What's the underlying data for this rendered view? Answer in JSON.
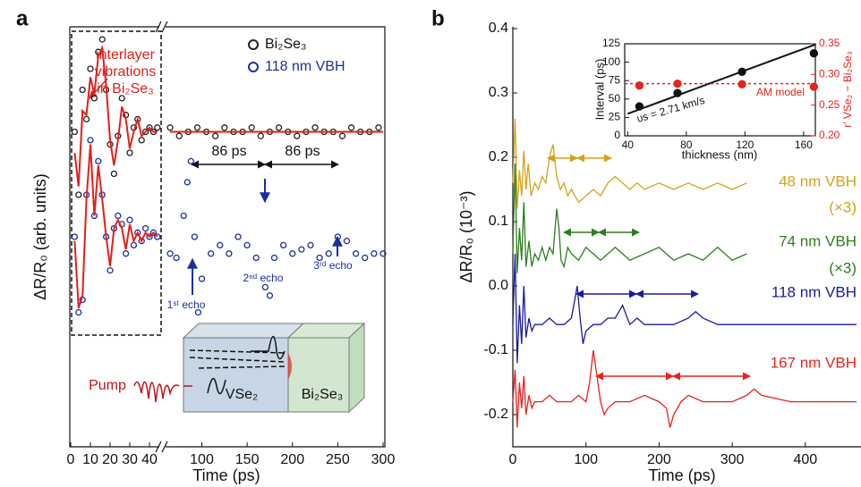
{
  "chart_data": [
    {
      "type": "scatter",
      "label": "a",
      "xlabel": "Time (ps)",
      "ylabel": "ΔR/R₀ (arb. units)",
      "xlim": [
        0,
        300
      ],
      "xbreak": [
        45,
        60
      ],
      "xticks": [
        0,
        10,
        20,
        30,
        40,
        100,
        150,
        200,
        250,
        300
      ],
      "ylim": [
        0,
        10
      ],
      "annotations": [
        "interlayer",
        "vibrations",
        "in Bi₂Se₃",
        "86 ps",
        "86 ps",
        "1ˢᵗ echo",
        "2ⁿᵈ echo",
        "3ʳᵈ echo",
        "Pump",
        "VSe₂",
        "Bi₂Se₃"
      ],
      "series": [
        {
          "name": "Bi₂Se₃",
          "color": "#222222",
          "marker": "open",
          "x": [
            2,
            4,
            6,
            8,
            10,
            12,
            14,
            16,
            18,
            20,
            22,
            24,
            26,
            28,
            30,
            32,
            34,
            36,
            38,
            40,
            42,
            44,
            65,
            75,
            85,
            95,
            105,
            115,
            125,
            135,
            145,
            155,
            165,
            175,
            185,
            195,
            205,
            215,
            225,
            235,
            245,
            255,
            265,
            275,
            285,
            295
          ],
          "values": [
            7.5,
            6.0,
            8.5,
            7.8,
            9.0,
            8.3,
            9.4,
            9.7,
            8.5,
            7.2,
            6.5,
            7.4,
            8.3,
            7.9,
            7.0,
            7.6,
            7.8,
            7.3,
            7.5,
            7.6,
            7.5,
            7.6,
            7.6,
            7.4,
            7.5,
            7.6,
            7.5,
            7.4,
            7.6,
            7.5,
            7.5,
            7.6,
            7.4,
            7.5,
            7.6,
            7.5,
            7.4,
            7.5,
            7.6,
            7.5,
            7.5,
            7.4,
            7.6,
            7.5,
            7.5,
            7.6
          ]
        },
        {
          "name": "118 nm VBH",
          "color": "#1c2f9e",
          "marker": "open",
          "x": [
            2,
            4,
            6,
            8,
            10,
            12,
            14,
            16,
            18,
            20,
            22,
            24,
            26,
            28,
            30,
            32,
            34,
            36,
            38,
            40,
            42,
            44,
            65,
            72,
            80,
            84,
            88,
            92,
            96,
            100,
            110,
            120,
            130,
            140,
            150,
            160,
            170,
            175,
            180,
            190,
            200,
            210,
            220,
            230,
            240,
            250,
            260,
            270,
            280,
            290,
            300
          ],
          "values": [
            5.0,
            3.2,
            3.5,
            6.0,
            7.3,
            5.5,
            6.8,
            6.0,
            5.0,
            4.2,
            5.2,
            5.5,
            5.3,
            4.6,
            5.4,
            4.8,
            5.1,
            4.9,
            5.2,
            5.0,
            5.1,
            5.0,
            4.6,
            4.5,
            5.5,
            6.3,
            6.8,
            5.0,
            3.2,
            4.0,
            4.6,
            4.8,
            4.6,
            5.0,
            4.8,
            4.5,
            3.8,
            3.6,
            4.5,
            4.8,
            4.6,
            4.7,
            4.8,
            4.5,
            4.6,
            5.0,
            4.9,
            4.6,
            4.5,
            4.6,
            4.6
          ]
        },
        {
          "color": "#e0201b",
          "line": true,
          "x": [
            2,
            4,
            6,
            8,
            10,
            12,
            14,
            16,
            18,
            20,
            22,
            24,
            26,
            28,
            30,
            32,
            34,
            36,
            38,
            40,
            42,
            44,
            45,
            65,
            300
          ],
          "values": [
            7.0,
            6.2,
            8.0,
            7.9,
            8.8,
            8.4,
            9.3,
            9.5,
            8.6,
            7.3,
            6.7,
            7.3,
            8.1,
            7.8,
            7.1,
            7.5,
            7.8,
            7.4,
            7.5,
            7.6,
            7.5,
            7.5,
            null,
            7.5,
            7.5
          ]
        },
        {
          "color": "#e0201b",
          "line": true,
          "x": [
            2,
            4,
            6,
            8,
            10,
            12,
            14,
            16,
            18,
            20,
            22,
            24,
            26,
            28,
            30,
            32,
            34,
            36,
            38,
            40,
            42,
            44
          ],
          "values": [
            4.9,
            3.3,
            3.6,
            5.9,
            7.2,
            5.5,
            6.7,
            5.9,
            5.0,
            4.3,
            5.2,
            5.4,
            5.2,
            4.7,
            5.3,
            4.9,
            5.1,
            4.9,
            5.1,
            5.0,
            5.1,
            5.0
          ]
        }
      ]
    },
    {
      "type": "line",
      "label": "b",
      "xlabel": "Time (ps)",
      "ylabel": "ΔR/R₀ (10⁻³)",
      "xlim": [
        0,
        470
      ],
      "xticks": [
        0,
        100,
        200,
        300,
        400
      ],
      "ylim": [
        -0.25,
        0.4
      ],
      "yticks": [
        -0.2,
        -0.1,
        {
          "value": 0,
          "label": "0.0"
        },
        0.1,
        0.2,
        0.3,
        0.4
      ],
      "series": [
        {
          "name": "48 nm VBH",
          "note": "(×3)",
          "color": "#d4a21a",
          "x": [
            0,
            3,
            6,
            9,
            12,
            15,
            18,
            21,
            25,
            30,
            35,
            40,
            45,
            50,
            55,
            60,
            65,
            70,
            75,
            80,
            90,
            100,
            110,
            120,
            130,
            140,
            150,
            160,
            170,
            180,
            200,
            220,
            240,
            260,
            280,
            300,
            320
          ],
          "values": [
            0.16,
            0.26,
            0.12,
            0.18,
            0.14,
            0.21,
            0.15,
            0.19,
            0.14,
            0.16,
            0.15,
            0.17,
            0.16,
            0.2,
            0.22,
            0.17,
            0.15,
            0.16,
            0.14,
            0.15,
            0.13,
            0.14,
            0.15,
            0.14,
            0.16,
            0.17,
            0.16,
            0.15,
            0.16,
            0.15,
            0.16,
            0.15,
            0.16,
            0.15,
            0.16,
            0.15,
            0.16
          ]
        },
        {
          "name": "74 nm VBH",
          "note": "(×3)",
          "color": "#2e7d1e",
          "x": [
            0,
            3,
            6,
            9,
            12,
            15,
            18,
            22,
            26,
            30,
            35,
            40,
            45,
            50,
            55,
            60,
            63,
            66,
            70,
            75,
            80,
            90,
            100,
            110,
            120,
            140,
            160,
            180,
            200,
            220,
            240,
            260,
            280,
            300,
            320
          ],
          "values": [
            0.05,
            0.19,
            0.02,
            0.09,
            0.04,
            0.13,
            0.03,
            0.07,
            0.03,
            0.05,
            0.04,
            0.06,
            0.04,
            0.06,
            0.05,
            0.12,
            0.09,
            0.04,
            0.03,
            0.06,
            0.05,
            0.04,
            0.06,
            0.05,
            0.04,
            0.06,
            0.04,
            0.05,
            0.06,
            0.04,
            0.05,
            0.04,
            0.06,
            0.04,
            0.05
          ]
        },
        {
          "name": "118 nm VBH",
          "color": "#1a1aa0",
          "x": [
            0,
            3,
            6,
            9,
            12,
            15,
            18,
            22,
            26,
            30,
            40,
            50,
            60,
            70,
            80,
            85,
            88,
            92,
            96,
            100,
            110,
            120,
            130,
            140,
            150,
            160,
            170,
            180,
            200,
            220,
            240,
            250,
            260,
            280,
            300,
            340,
            380,
            420,
            460,
            470
          ],
          "values": [
            -0.06,
            0.05,
            -0.12,
            -0.03,
            -0.09,
            0,
            -0.08,
            -0.05,
            -0.07,
            -0.06,
            -0.06,
            -0.05,
            -0.06,
            -0.06,
            -0.05,
            -0.02,
            0,
            -0.05,
            -0.09,
            -0.07,
            -0.06,
            -0.06,
            -0.05,
            -0.05,
            -0.03,
            -0.06,
            -0.05,
            -0.06,
            -0.06,
            -0.06,
            -0.05,
            -0.04,
            -0.05,
            -0.06,
            -0.06,
            -0.06,
            -0.06,
            -0.06,
            -0.06,
            -0.06
          ]
        },
        {
          "name": "167 nm VBH",
          "color": "#e8231f",
          "x": [
            0,
            3,
            6,
            9,
            12,
            15,
            18,
            22,
            26,
            30,
            40,
            50,
            60,
            70,
            80,
            90,
            100,
            105,
            110,
            115,
            120,
            125,
            130,
            140,
            160,
            180,
            200,
            210,
            215,
            220,
            230,
            240,
            260,
            280,
            300,
            320,
            330,
            340,
            380,
            420,
            470
          ],
          "values": [
            -0.18,
            -0.13,
            -0.22,
            -0.15,
            -0.19,
            -0.14,
            -0.2,
            -0.17,
            -0.19,
            -0.18,
            -0.18,
            -0.17,
            -0.18,
            -0.18,
            -0.18,
            -0.17,
            -0.18,
            -0.15,
            -0.1,
            -0.14,
            -0.18,
            -0.2,
            -0.19,
            -0.18,
            -0.18,
            -0.17,
            -0.18,
            -0.19,
            -0.22,
            -0.2,
            -0.18,
            -0.17,
            -0.18,
            -0.18,
            -0.18,
            -0.17,
            -0.16,
            -0.17,
            -0.18,
            -0.18,
            -0.18
          ]
        }
      ]
    },
    {
      "type": "scatter",
      "xlabel": "thickness (nm)",
      "ylabel": "Interval (ps)",
      "y2label": "r′ VSe₂ − Bi₂Se₃",
      "xlim": [
        38,
        168
      ],
      "xticks": [
        40,
        80,
        120,
        160
      ],
      "ylim": [
        0,
        125
      ],
      "yticks": [
        0,
        25,
        50,
        75,
        100,
        125
      ],
      "y2lim": [
        0.2,
        0.35
      ],
      "y2ticks": [
        {
          "value": 0.2,
          "label": "0.20"
        },
        0.25,
        {
          "value": 0.3,
          "label": "0.30"
        },
        0.35
      ],
      "annotations": [
        "υs = 2.71 km/s",
        "AM model"
      ],
      "series": [
        {
          "color": "#111111",
          "marker": "filled",
          "x": [
            48,
            74,
            118,
            167
          ],
          "values": [
            40,
            58,
            87,
            112
          ]
        },
        {
          "color": "#111111",
          "line": true,
          "x": [
            40,
            168
          ],
          "values": [
            30,
            124
          ]
        },
        {
          "color": "#e8231f",
          "marker": "filled",
          "axis": "y2",
          "x": [
            48,
            74,
            118,
            167
          ],
          "values": [
            0.282,
            0.285,
            0.284,
            0.28
          ]
        },
        {
          "color": "#e8231f",
          "line": true,
          "dash": true,
          "axis": "y2",
          "x": [
            38,
            168
          ],
          "values": [
            0.285,
            0.285
          ]
        }
      ]
    }
  ]
}
